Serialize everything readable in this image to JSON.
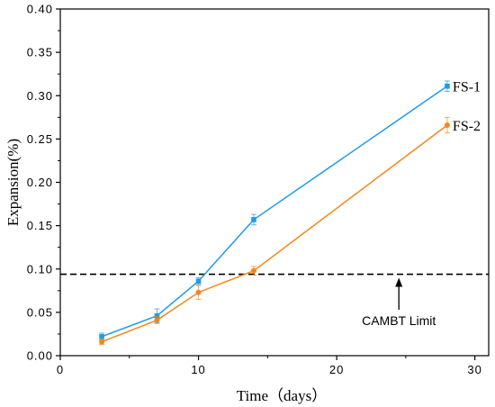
{
  "chart_data": {
    "type": "line",
    "xlabel": "Time（days）",
    "ylabel": "Expansion(%)",
    "xlim": [
      0,
      31
    ],
    "ylim": [
      0,
      0.4
    ],
    "xticks": [
      0,
      10,
      20,
      30
    ],
    "xtick_labels": [
      "0",
      "10",
      "20",
      "30"
    ],
    "yticks": [
      0,
      0.05,
      0.1,
      0.15,
      0.2,
      0.25,
      0.3,
      0.35,
      0.4
    ],
    "ytick_labels": [
      "0.00",
      "0.05",
      "0.10",
      "0.15",
      "0.20",
      "0.25",
      "0.30",
      "0.35",
      "0.40"
    ],
    "grid": false,
    "legend": "none",
    "series": [
      {
        "name": "FS-1",
        "color": "#1f9be8",
        "marker": "square",
        "x": [
          3,
          7,
          10,
          14,
          28
        ],
        "y": [
          0.022,
          0.046,
          0.086,
          0.157,
          0.311
        ],
        "err": [
          0.004,
          0.008,
          0.004,
          0.006,
          0.006
        ]
      },
      {
        "name": "FS-2",
        "color": "#f7861c",
        "marker": "circle",
        "x": [
          3,
          7,
          10,
          14,
          28
        ],
        "y": [
          0.016,
          0.041,
          0.073,
          0.098,
          0.266
        ],
        "err": [
          0.003,
          0.004,
          0.008,
          0.005,
          0.009
        ]
      }
    ],
    "reference_line": {
      "y": 0.094,
      "style": "dashed",
      "color": "#000000"
    },
    "annotation": {
      "text": "CAMBT Limit",
      "arrow_x": 24.5,
      "arrow_points_to_y": 0.094
    }
  }
}
